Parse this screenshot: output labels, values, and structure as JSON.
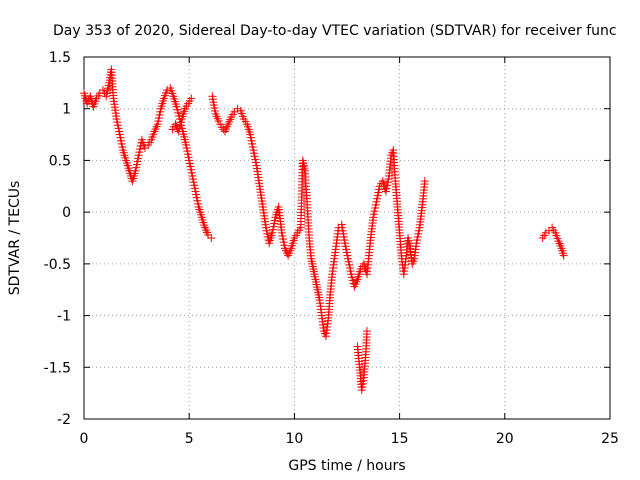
{
  "chart_data": {
    "type": "scatter",
    "title": "Day 353 of 2020, Sidereal Day-to-day VTEC variation (SDTVAR) for receiver func",
    "xlabel": "GPS time / hours",
    "ylabel": "SDTVAR / TECUs",
    "xlim": [
      0,
      25
    ],
    "ylim": [
      -2,
      1.5
    ],
    "xticks": [
      0,
      5,
      10,
      15,
      20,
      25
    ],
    "yticks": [
      -2,
      -1.5,
      -1,
      -0.5,
      0,
      0.5,
      1,
      1.5
    ],
    "grid": true,
    "marker": "plus",
    "marker_color": "#ff0000",
    "series_segments": [
      [
        [
          0.0,
          1.15
        ],
        [
          0.15,
          1.05
        ],
        [
          0.3,
          1.12
        ],
        [
          0.45,
          1.02
        ],
        [
          0.6,
          1.1
        ],
        [
          0.75,
          1.15
        ],
        [
          0.9,
          1.18
        ],
        [
          1.05,
          1.12
        ],
        [
          1.2,
          1.25
        ],
        [
          1.3,
          1.38
        ],
        [
          1.4,
          1.1
        ],
        [
          1.55,
          0.9
        ],
        [
          1.7,
          0.75
        ],
        [
          1.85,
          0.6
        ],
        [
          2.0,
          0.5
        ],
        [
          2.15,
          0.4
        ],
        [
          2.3,
          0.3
        ],
        [
          2.45,
          0.4
        ],
        [
          2.6,
          0.55
        ],
        [
          2.75,
          0.7
        ],
        [
          2.9,
          0.62
        ],
        [
          3.05,
          0.65
        ],
        [
          3.2,
          0.7
        ],
        [
          3.35,
          0.78
        ],
        [
          3.5,
          0.85
        ],
        [
          3.65,
          1.0
        ],
        [
          3.8,
          1.1
        ],
        [
          3.95,
          1.18
        ],
        [
          4.1,
          1.2
        ],
        [
          4.25,
          1.12
        ],
        [
          4.4,
          1.02
        ],
        [
          4.55,
          0.9
        ],
        [
          4.7,
          0.78
        ],
        [
          4.85,
          0.65
        ],
        [
          5.0,
          0.5
        ],
        [
          5.15,
          0.35
        ],
        [
          5.3,
          0.2
        ],
        [
          5.45,
          0.05
        ],
        [
          5.6,
          -0.05
        ],
        [
          5.75,
          -0.15
        ],
        [
          5.9,
          -0.22
        ],
        [
          6.05,
          -0.25
        ]
      ],
      [
        [
          4.2,
          0.8
        ],
        [
          4.35,
          0.85
        ],
        [
          4.5,
          0.78
        ],
        [
          4.65,
          0.9
        ],
        [
          4.8,
          1.0
        ],
        [
          4.95,
          1.05
        ],
        [
          5.1,
          1.1
        ]
      ],
      [
        [
          6.1,
          1.12
        ],
        [
          6.25,
          0.95
        ],
        [
          6.4,
          0.88
        ],
        [
          6.55,
          0.82
        ],
        [
          6.7,
          0.78
        ],
        [
          6.85,
          0.85
        ],
        [
          7.0,
          0.92
        ],
        [
          7.15,
          0.97
        ],
        [
          7.3,
          1.0
        ],
        [
          7.45,
          0.98
        ],
        [
          7.6,
          0.9
        ],
        [
          7.75,
          0.85
        ],
        [
          7.9,
          0.75
        ],
        [
          8.05,
          0.6
        ],
        [
          8.2,
          0.45
        ],
        [
          8.35,
          0.25
        ],
        [
          8.5,
          0.05
        ],
        [
          8.65,
          -0.15
        ],
        [
          8.8,
          -0.3
        ],
        [
          8.95,
          -0.2
        ],
        [
          9.1,
          -0.05
        ],
        [
          9.25,
          0.05
        ],
        [
          9.4,
          -0.2
        ],
        [
          9.55,
          -0.35
        ],
        [
          9.7,
          -0.42
        ],
        [
          9.85,
          -0.35
        ],
        [
          10.0,
          -0.25
        ],
        [
          10.15,
          -0.2
        ],
        [
          10.3,
          -0.15
        ],
        [
          10.4,
          0.5
        ],
        [
          10.5,
          0.4
        ],
        [
          10.6,
          0.1
        ],
        [
          10.7,
          -0.25
        ],
        [
          10.8,
          -0.45
        ],
        [
          10.9,
          -0.55
        ],
        [
          11.0,
          -0.65
        ],
        [
          11.1,
          -0.75
        ],
        [
          11.2,
          -0.85
        ],
        [
          11.3,
          -1.0
        ],
        [
          11.4,
          -1.15
        ],
        [
          11.5,
          -1.2
        ],
        [
          11.6,
          -1.05
        ],
        [
          11.7,
          -0.8
        ],
        [
          11.8,
          -0.6
        ],
        [
          11.9,
          -0.45
        ],
        [
          12.0,
          -0.3
        ],
        [
          12.1,
          -0.15
        ],
        [
          12.25,
          -0.12
        ],
        [
          12.4,
          -0.3
        ],
        [
          12.55,
          -0.45
        ],
        [
          12.7,
          -0.6
        ],
        [
          12.85,
          -0.72
        ],
        [
          13.0,
          -0.65
        ],
        [
          13.15,
          -0.55
        ],
        [
          13.3,
          -0.5
        ],
        [
          13.45,
          -0.6
        ],
        [
          13.6,
          -0.3
        ],
        [
          13.75,
          -0.05
        ],
        [
          13.9,
          0.1
        ],
        [
          14.05,
          0.25
        ],
        [
          14.2,
          0.3
        ],
        [
          14.35,
          0.2
        ],
        [
          14.5,
          0.35
        ],
        [
          14.6,
          0.55
        ],
        [
          14.7,
          0.6
        ],
        [
          14.8,
          0.3
        ],
        [
          14.9,
          0.05
        ],
        [
          15.0,
          -0.2
        ],
        [
          15.1,
          -0.45
        ],
        [
          15.2,
          -0.6
        ],
        [
          15.3,
          -0.45
        ],
        [
          15.4,
          -0.25
        ],
        [
          15.5,
          -0.35
        ],
        [
          15.6,
          -0.5
        ],
        [
          15.7,
          -0.45
        ],
        [
          15.8,
          -0.3
        ],
        [
          15.95,
          -0.15
        ],
        [
          16.1,
          0.1
        ],
        [
          16.2,
          0.3
        ]
      ],
      [
        [
          13.0,
          -1.3
        ],
        [
          13.1,
          -1.5
        ],
        [
          13.2,
          -1.72
        ],
        [
          13.3,
          -1.6
        ],
        [
          13.4,
          -1.35
        ],
        [
          13.45,
          -1.15
        ]
      ],
      [
        [
          21.8,
          -0.25
        ],
        [
          21.95,
          -0.2
        ],
        [
          22.1,
          -0.18
        ],
        [
          22.25,
          -0.15
        ],
        [
          22.4,
          -0.2
        ],
        [
          22.55,
          -0.28
        ],
        [
          22.7,
          -0.35
        ],
        [
          22.8,
          -0.42
        ]
      ]
    ]
  }
}
